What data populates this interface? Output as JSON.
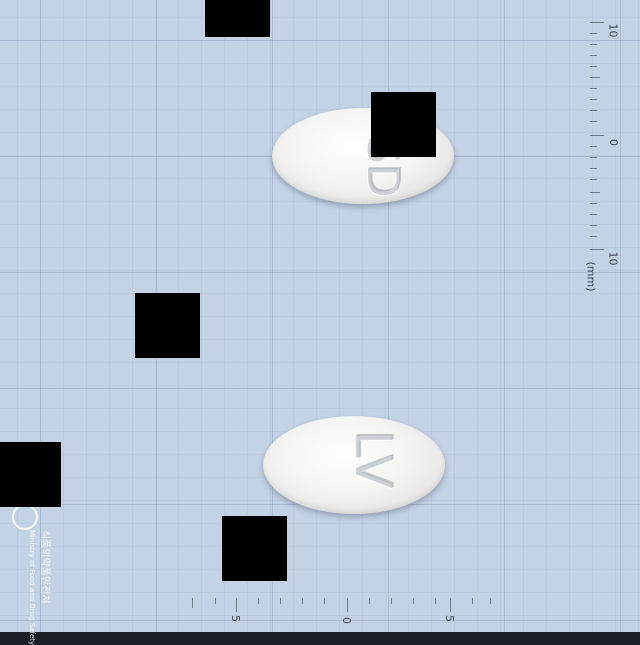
{
  "scene": {
    "description_type": "pill identification photo",
    "background_color": "#c4d2e6"
  },
  "pills": [
    {
      "imprint": "SD",
      "color": "#f2f2f0"
    },
    {
      "imprint": "LV",
      "color": "#f2f2f0"
    }
  ],
  "ruler_vertical": {
    "labels": [
      "10",
      "0",
      "10"
    ],
    "unit": "(mm)"
  },
  "ruler_horizontal": {
    "labels": [
      "5",
      "0",
      "5"
    ]
  },
  "watermark": {
    "title": "식품의약품안전처",
    "subtitle": "Ministry of Food and Drug Safety"
  }
}
